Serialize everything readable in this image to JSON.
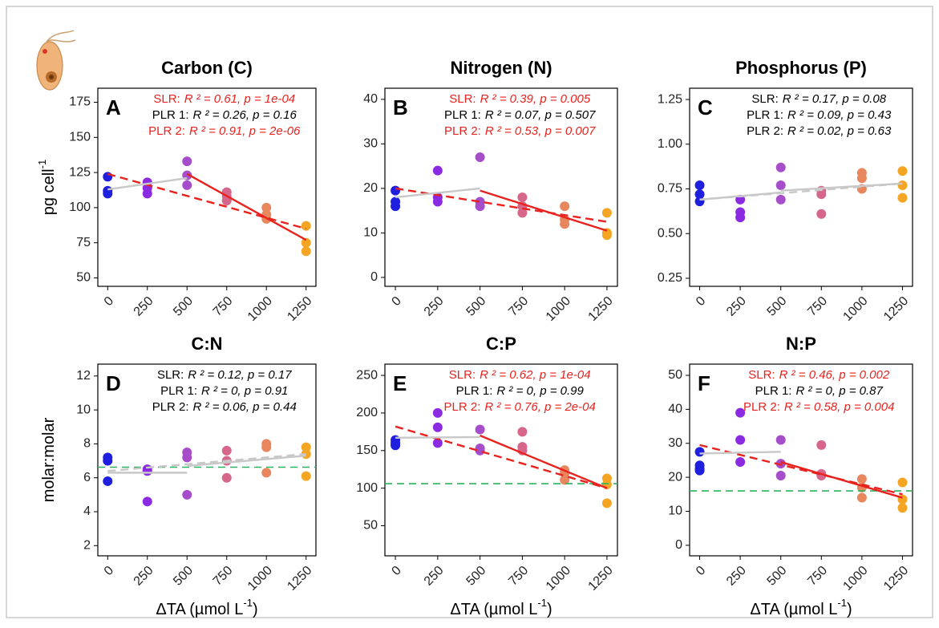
{
  "chart_data": [
    {
      "type": "scatter",
      "title": "Carbon (C)",
      "panel": "A",
      "y_label": [
        "pg cell",
        "-1"
      ],
      "xlim": [
        -62,
        1312
      ],
      "xticks": [
        0,
        250,
        500,
        750,
        1000,
        1250
      ],
      "ylim": [
        44,
        185
      ],
      "yticks": [
        50,
        75,
        100,
        125,
        150,
        175
      ],
      "groups": [
        {
          "x": 0,
          "color": "#1f1fe0",
          "values": [
            122,
            112,
            110
          ]
        },
        {
          "x": 250,
          "color": "#8a2be2",
          "values": [
            118,
            114,
            110
          ]
        },
        {
          "x": 500,
          "color": "#a64dc9",
          "values": [
            133,
            123,
            116
          ]
        },
        {
          "x": 750,
          "color": "#d6678a",
          "values": [
            111,
            108,
            105
          ]
        },
        {
          "x": 1000,
          "color": "#e8875e",
          "values": [
            100,
            95,
            92
          ]
        },
        {
          "x": 1250,
          "color": "#f5a524",
          "values": [
            87,
            75,
            69
          ]
        }
      ],
      "fits": [
        {
          "label": "SLR:",
          "stats": "R ² = 0.61, p = 1e-04",
          "text_color": "#e8221e",
          "color": "#e8221e",
          "dash": true,
          "x": [
            0,
            1250
          ],
          "y": [
            124,
            85
          ]
        },
        {
          "label": "PLR 1:",
          "stats": "R ² = 0.26, p = 0.16",
          "text_color": "#000000",
          "color": "#c8c8c8",
          "dash": false,
          "x": [
            0,
            500
          ],
          "y": [
            113,
            121
          ]
        },
        {
          "label": "PLR 2:",
          "stats": "R ² = 0.91, p = 2e-06",
          "text_color": "#e8221e",
          "color": "#e8221e",
          "dash": false,
          "x": [
            500,
            1250
          ],
          "y": [
            124,
            77
          ]
        }
      ]
    },
    {
      "type": "scatter",
      "title": "Nitrogen (N)",
      "panel": "B",
      "xlim": [
        -62,
        1312
      ],
      "xticks": [
        0,
        250,
        500,
        750,
        1000,
        1250
      ],
      "ylim": [
        -2,
        42.5
      ],
      "yticks": [
        0,
        10,
        20,
        30,
        40
      ],
      "groups": [
        {
          "x": 0,
          "color": "#1f1fe0",
          "values": [
            19.5,
            17,
            16
          ]
        },
        {
          "x": 250,
          "color": "#8a2be2",
          "values": [
            24,
            18,
            17
          ]
        },
        {
          "x": 500,
          "color": "#a64dc9",
          "values": [
            27,
            17,
            16
          ]
        },
        {
          "x": 750,
          "color": "#d6678a",
          "values": [
            18,
            16,
            14.5
          ]
        },
        {
          "x": 1000,
          "color": "#e8875e",
          "values": [
            16,
            13,
            12
          ]
        },
        {
          "x": 1250,
          "color": "#f5a524",
          "values": [
            14.5,
            10,
            9.5
          ]
        }
      ],
      "fits": [
        {
          "label": "SLR:",
          "stats": "R ² = 0.39, p = 0.005",
          "text_color": "#e8221e",
          "color": "#e8221e",
          "dash": true,
          "x": [
            0,
            1250
          ],
          "y": [
            20,
            12.5
          ]
        },
        {
          "label": "PLR 1:",
          "stats": "R ² = 0.07, p = 0.507",
          "text_color": "#000000",
          "color": "#c8c8c8",
          "dash": false,
          "x": [
            0,
            500
          ],
          "y": [
            18,
            20
          ]
        },
        {
          "label": "PLR 2:",
          "stats": "R ² = 0.53, p = 0.007",
          "text_color": "#e8221e",
          "color": "#e8221e",
          "dash": false,
          "x": [
            500,
            1250
          ],
          "y": [
            19.5,
            10.5
          ]
        }
      ]
    },
    {
      "type": "scatter",
      "title": "Phosphorus (P)",
      "panel": "C",
      "xlim": [
        -62,
        1312
      ],
      "xticks": [
        0,
        250,
        500,
        750,
        1000,
        1250
      ],
      "ylim": [
        0.205,
        1.313
      ],
      "yticks": [
        0.25,
        {
          "value": 0.5,
          "label": "0.50"
        },
        0.75,
        {
          "value": 1,
          "label": "1.00"
        },
        1.25
      ],
      "groups": [
        {
          "x": 0,
          "color": "#1f1fe0",
          "values": [
            0.77,
            0.72,
            0.68
          ]
        },
        {
          "x": 250,
          "color": "#8a2be2",
          "values": [
            0.69,
            0.62,
            0.59
          ]
        },
        {
          "x": 500,
          "color": "#a64dc9",
          "values": [
            0.87,
            0.77,
            0.69
          ]
        },
        {
          "x": 750,
          "color": "#d6678a",
          "values": [
            0.74,
            0.72,
            0.61
          ]
        },
        {
          "x": 1000,
          "color": "#e8875e",
          "values": [
            0.84,
            0.81,
            0.75
          ]
        },
        {
          "x": 1250,
          "color": "#f5a524",
          "values": [
            0.85,
            0.77,
            0.7
          ]
        }
      ],
      "fits": [
        {
          "label": "SLR:",
          "stats": "R ² = 0.17, p = 0.08",
          "text_color": "#000000",
          "color": "#c8c8c8",
          "dash": true,
          "x": [
            0,
            1250
          ],
          "y": [
            0.69,
            0.78
          ]
        },
        {
          "label": "PLR 1:",
          "stats": "R ² = 0.09, p = 0.43",
          "text_color": "#000000",
          "color": "#c8c8c8",
          "dash": false,
          "x": [
            0,
            500
          ],
          "y": [
            0.69,
            0.73
          ]
        },
        {
          "label": "PLR 2:",
          "stats": "R ² = 0.02, p = 0.63",
          "text_color": "#000000",
          "color": "#c8c8c8",
          "dash": false,
          "x": [
            500,
            1250
          ],
          "y": [
            0.74,
            0.78
          ]
        }
      ]
    },
    {
      "type": "scatter",
      "title": "C:N",
      "panel": "D",
      "y_label": [
        "molar:molar"
      ],
      "x_label": [
        "ΔTA (µmol L",
        "-1",
        ")"
      ],
      "xlim": [
        -62,
        1312
      ],
      "xticks": [
        0,
        250,
        500,
        750,
        1000,
        1250
      ],
      "ylim": [
        1.4,
        12.7
      ],
      "yticks": [
        2,
        4,
        6,
        8,
        10,
        12
      ],
      "reference": 6.625,
      "reference_color": "#2db35d",
      "groups": [
        {
          "x": 0,
          "color": "#1f1fe0",
          "values": [
            7.2,
            7.0,
            5.8
          ]
        },
        {
          "x": 250,
          "color": "#8a2be2",
          "values": [
            6.5,
            6.4,
            4.6
          ]
        },
        {
          "x": 500,
          "color": "#a64dc9",
          "values": [
            7.5,
            7.2,
            5.0
          ]
        },
        {
          "x": 750,
          "color": "#d6678a",
          "values": [
            7.6,
            7.0,
            6.0
          ]
        },
        {
          "x": 1000,
          "color": "#e8875e",
          "values": [
            8.0,
            7.8,
            6.3
          ]
        },
        {
          "x": 1250,
          "color": "#f5a524",
          "values": [
            7.8,
            7.4,
            6.1
          ]
        }
      ],
      "fits": [
        {
          "label": "SLR:",
          "stats": "R ² = 0.12, p = 0.17",
          "text_color": "#000000",
          "color": "#c8c8c8",
          "dash": true,
          "x": [
            0,
            1250
          ],
          "y": [
            6.4,
            7.4
          ]
        },
        {
          "label": "PLR 1:",
          "stats": "R ² = 0, p = 0.91",
          "text_color": "#000000",
          "color": "#c8c8c8",
          "dash": false,
          "x": [
            0,
            500
          ],
          "y": [
            6.3,
            6.3
          ]
        },
        {
          "label": "PLR 2:",
          "stats": "R ² = 0.06, p = 0.44",
          "text_color": "#000000",
          "color": "#c8c8c8",
          "dash": false,
          "x": [
            500,
            1250
          ],
          "y": [
            6.7,
            7.3
          ]
        }
      ]
    },
    {
      "type": "scatter",
      "title": "C:P",
      "panel": "E",
      "x_label": [
        "ΔTA (µmol L",
        "-1",
        ")"
      ],
      "xlim": [
        -62,
        1312
      ],
      "xticks": [
        0,
        250,
        500,
        750,
        1000,
        1250
      ],
      "ylim": [
        10,
        265
      ],
      "yticks": [
        50,
        100,
        150,
        200,
        250
      ],
      "reference": 106,
      "reference_color": "#2db35d",
      "groups": [
        {
          "x": 0,
          "color": "#1f1fe0",
          "values": [
            164,
            160,
            157
          ]
        },
        {
          "x": 250,
          "color": "#8a2be2",
          "values": [
            200,
            181,
            160
          ]
        },
        {
          "x": 500,
          "color": "#a64dc9",
          "values": [
            178,
            153,
            150
          ]
        },
        {
          "x": 750,
          "color": "#d6678a",
          "values": [
            175,
            155,
            150
          ]
        },
        {
          "x": 1000,
          "color": "#e8875e",
          "values": [
            124,
            120,
            111
          ]
        },
        {
          "x": 1250,
          "color": "#f5a524",
          "values": [
            113,
            105,
            80
          ]
        }
      ],
      "fits": [
        {
          "label": "SLR:",
          "stats": "R ² = 0.62, p = 1e-04",
          "text_color": "#e8221e",
          "color": "#e8221e",
          "dash": true,
          "x": [
            0,
            1250
          ],
          "y": [
            182,
            100
          ]
        },
        {
          "label": "PLR 1:",
          "stats": "R ² = 0, p = 0.99",
          "text_color": "#000000",
          "color": "#c8c8c8",
          "dash": false,
          "x": [
            0,
            500
          ],
          "y": [
            167,
            168
          ]
        },
        {
          "label": "PLR 2:",
          "stats": "R ² = 0.76, p = 2e-04",
          "text_color": "#e8221e",
          "color": "#e8221e",
          "dash": false,
          "x": [
            500,
            1250
          ],
          "y": [
            170,
            100
          ]
        }
      ]
    },
    {
      "type": "scatter",
      "title": "N:P",
      "panel": "F",
      "x_label": [
        "ΔTA (µmol L",
        "-1",
        ")"
      ],
      "xlim": [
        -62,
        1312
      ],
      "xticks": [
        0,
        250,
        500,
        750,
        1000,
        1250
      ],
      "ylim": [
        -3.1,
        53.3
      ],
      "yticks": [
        0,
        10,
        20,
        30,
        40,
        50
      ],
      "reference": 16,
      "reference_color": "#2db35d",
      "groups": [
        {
          "x": 0,
          "color": "#1f1fe0",
          "values": [
            27.5,
            23.5,
            22.5,
            22
          ]
        },
        {
          "x": 250,
          "color": "#8a2be2",
          "values": [
            39,
            31,
            24.5
          ]
        },
        {
          "x": 500,
          "color": "#a64dc9",
          "values": [
            31,
            24,
            20.5
          ]
        },
        {
          "x": 750,
          "color": "#d6678a",
          "values": [
            29.5,
            21,
            20.5
          ]
        },
        {
          "x": 1000,
          "color": "#e8875e",
          "values": [
            19.5,
            17,
            14
          ]
        },
        {
          "x": 1250,
          "color": "#f5a524",
          "values": [
            18.5,
            13.5,
            11
          ]
        }
      ],
      "fits": [
        {
          "label": "SLR:",
          "stats": "R ² = 0.46, p = 0.002",
          "text_color": "#e8221e",
          "color": "#e8221e",
          "dash": true,
          "x": [
            0,
            1250
          ],
          "y": [
            29.5,
            15
          ]
        },
        {
          "label": "PLR 1:",
          "stats": "R ² = 0, p = 0.87",
          "text_color": "#000000",
          "color": "#c8c8c8",
          "dash": false,
          "x": [
            0,
            500
          ],
          "y": [
            27,
            27.5
          ]
        },
        {
          "label": "PLR 2:",
          "stats": "R ² = 0.58, p = 0.004",
          "text_color": "#e8221e",
          "color": "#e8221e",
          "dash": false,
          "x": [
            500,
            1250
          ],
          "y": [
            24.5,
            14
          ]
        }
      ]
    }
  ]
}
